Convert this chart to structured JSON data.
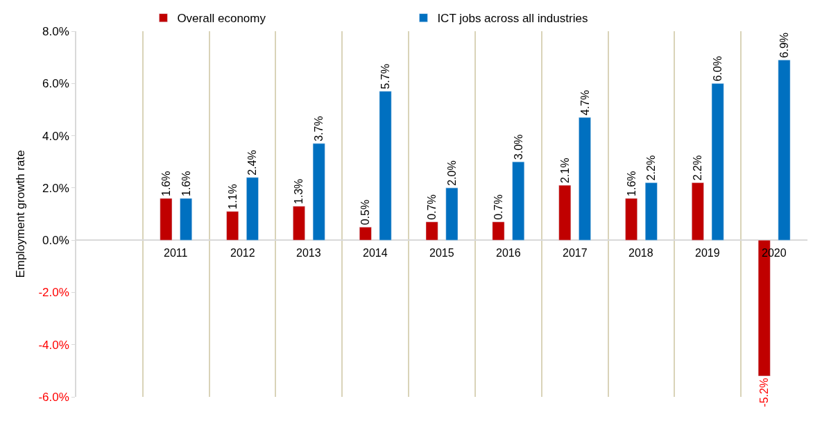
{
  "chart_data": {
    "type": "bar",
    "ylabel": "Employment growth rate",
    "categories": [
      null,
      "2011",
      "2012",
      "2013",
      "2014",
      "2015",
      "2016",
      "2017",
      "2018",
      "2019",
      "2020"
    ],
    "series": [
      {
        "name": "Overall economy",
        "color": "#c00000",
        "values": [
          null,
          1.6,
          1.1,
          1.3,
          0.5,
          0.7,
          0.7,
          2.1,
          1.6,
          2.2,
          -5.2
        ],
        "value_labels": [
          null,
          "1.6%",
          "1.1%",
          "1.3%",
          "0.5%",
          "0.7%",
          "0.7%",
          "2.1%",
          "1.6%",
          "2.2%",
          "-5.2%"
        ]
      },
      {
        "name": "ICT jobs across all industries",
        "color": "#0070c0",
        "values": [
          null,
          1.6,
          2.4,
          3.7,
          5.7,
          2.0,
          3.0,
          4.7,
          2.2,
          6.0,
          6.9
        ],
        "value_labels": [
          null,
          "1.6%",
          "2.4%",
          "3.7%",
          "5.7%",
          "2.0%",
          "3.0%",
          "4.7%",
          "2.2%",
          "6.0%",
          "6.9%"
        ]
      }
    ],
    "ylim": [
      -6,
      8
    ],
    "yticks": [
      {
        "value": -6,
        "label": "-6.0%"
      },
      {
        "value": -4,
        "label": "-4.0%"
      },
      {
        "value": -2,
        "label": "-2.0%"
      },
      {
        "value": 0,
        "label": "0.0%"
      },
      {
        "value": 2,
        "label": "2.0%"
      },
      {
        "value": 4,
        "label": "4.0%"
      },
      {
        "value": 6,
        "label": "6.0%"
      },
      {
        "value": 8,
        "label": "8.0%"
      }
    ],
    "grid": "x",
    "legend": "top"
  }
}
